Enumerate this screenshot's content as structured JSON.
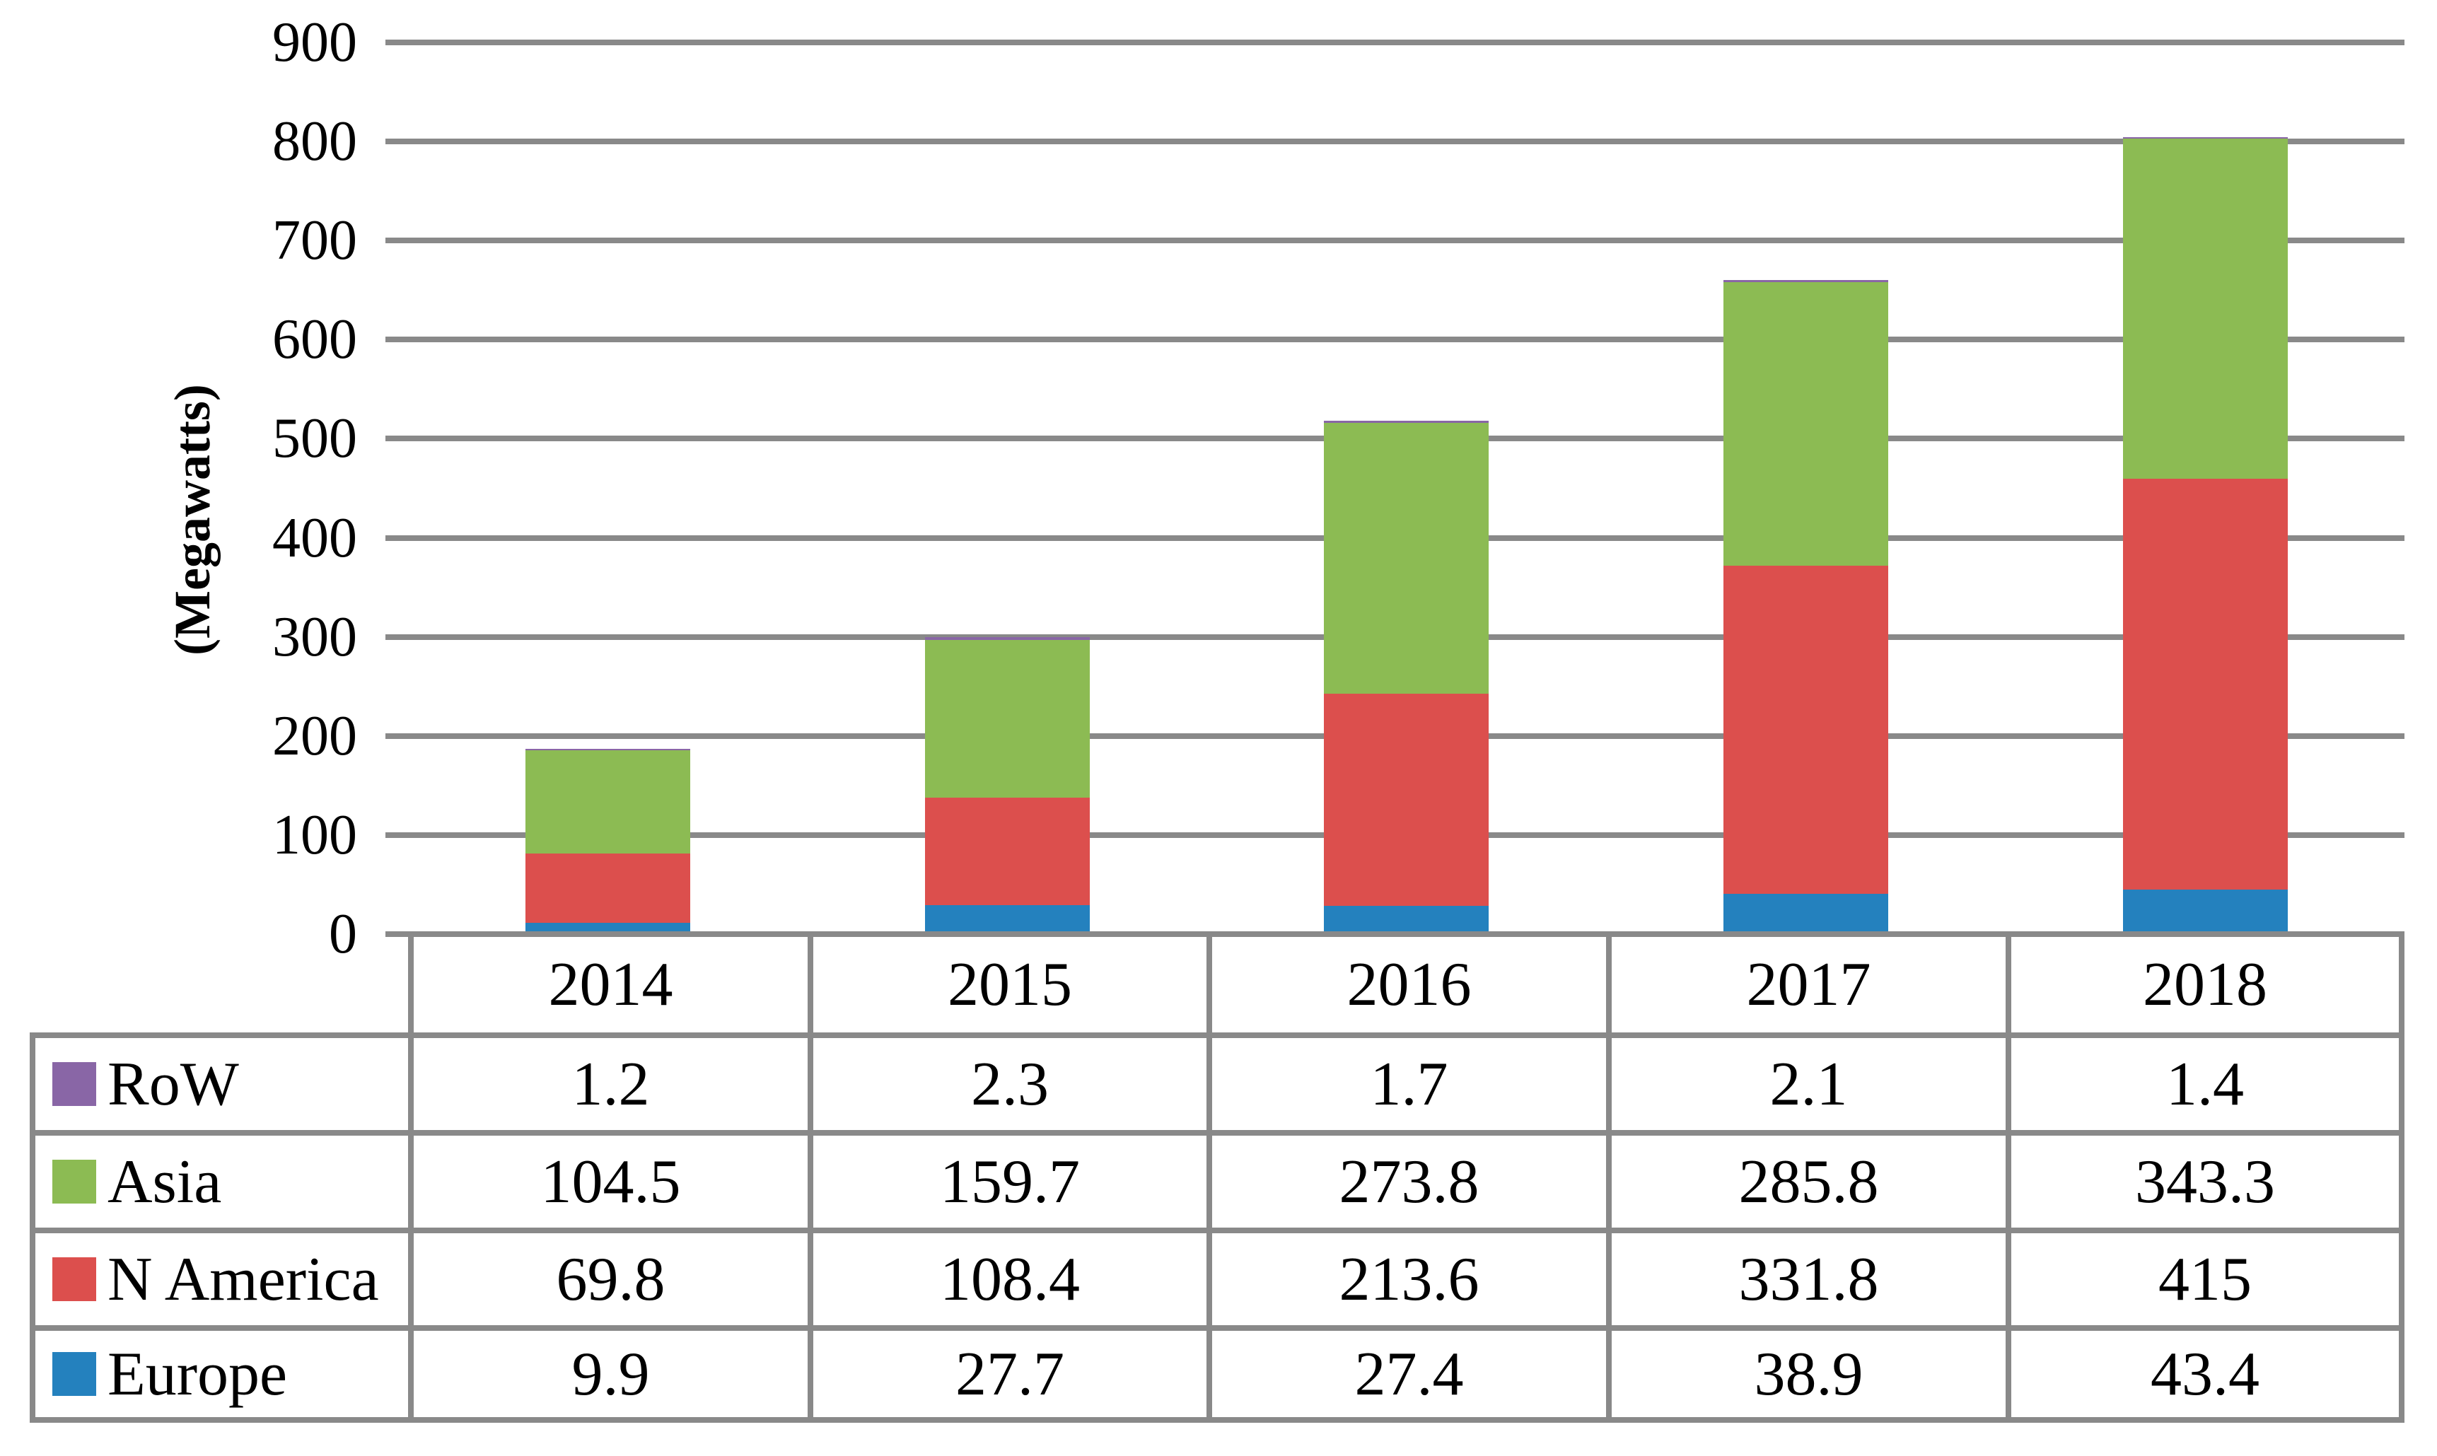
{
  "chart_data": {
    "type": "bar",
    "stacked": true,
    "title": "",
    "xlabel": "",
    "ylabel": "(Megawatts)",
    "ylim": [
      0,
      900
    ],
    "yticks": [
      0,
      100,
      200,
      300,
      400,
      500,
      600,
      700,
      800,
      900
    ],
    "grid": true,
    "legend_position": "table-left-column",
    "categories": [
      "2014",
      "2015",
      "2016",
      "2017",
      "2018"
    ],
    "series": [
      {
        "name": "Europe",
        "color": "#2481BE",
        "values": [
          9.9,
          27.7,
          27.4,
          38.9,
          43.4
        ]
      },
      {
        "name": "N America",
        "color": "#DC4F4D",
        "values": [
          69.8,
          108.4,
          213.6,
          331.8,
          415
        ]
      },
      {
        "name": "Asia",
        "color": "#8CBB53",
        "values": [
          104.5,
          159.7,
          273.8,
          285.8,
          343.3
        ]
      },
      {
        "name": "RoW",
        "color": "#8966A6",
        "values": [
          1.2,
          2.3,
          1.7,
          2.1,
          1.4
        ]
      }
    ],
    "table_row_order": [
      "RoW",
      "Asia",
      "N America",
      "Europe"
    ],
    "colors": {
      "grid_and_border": "#898989",
      "text": "#000000",
      "background": "#ffffff"
    }
  }
}
